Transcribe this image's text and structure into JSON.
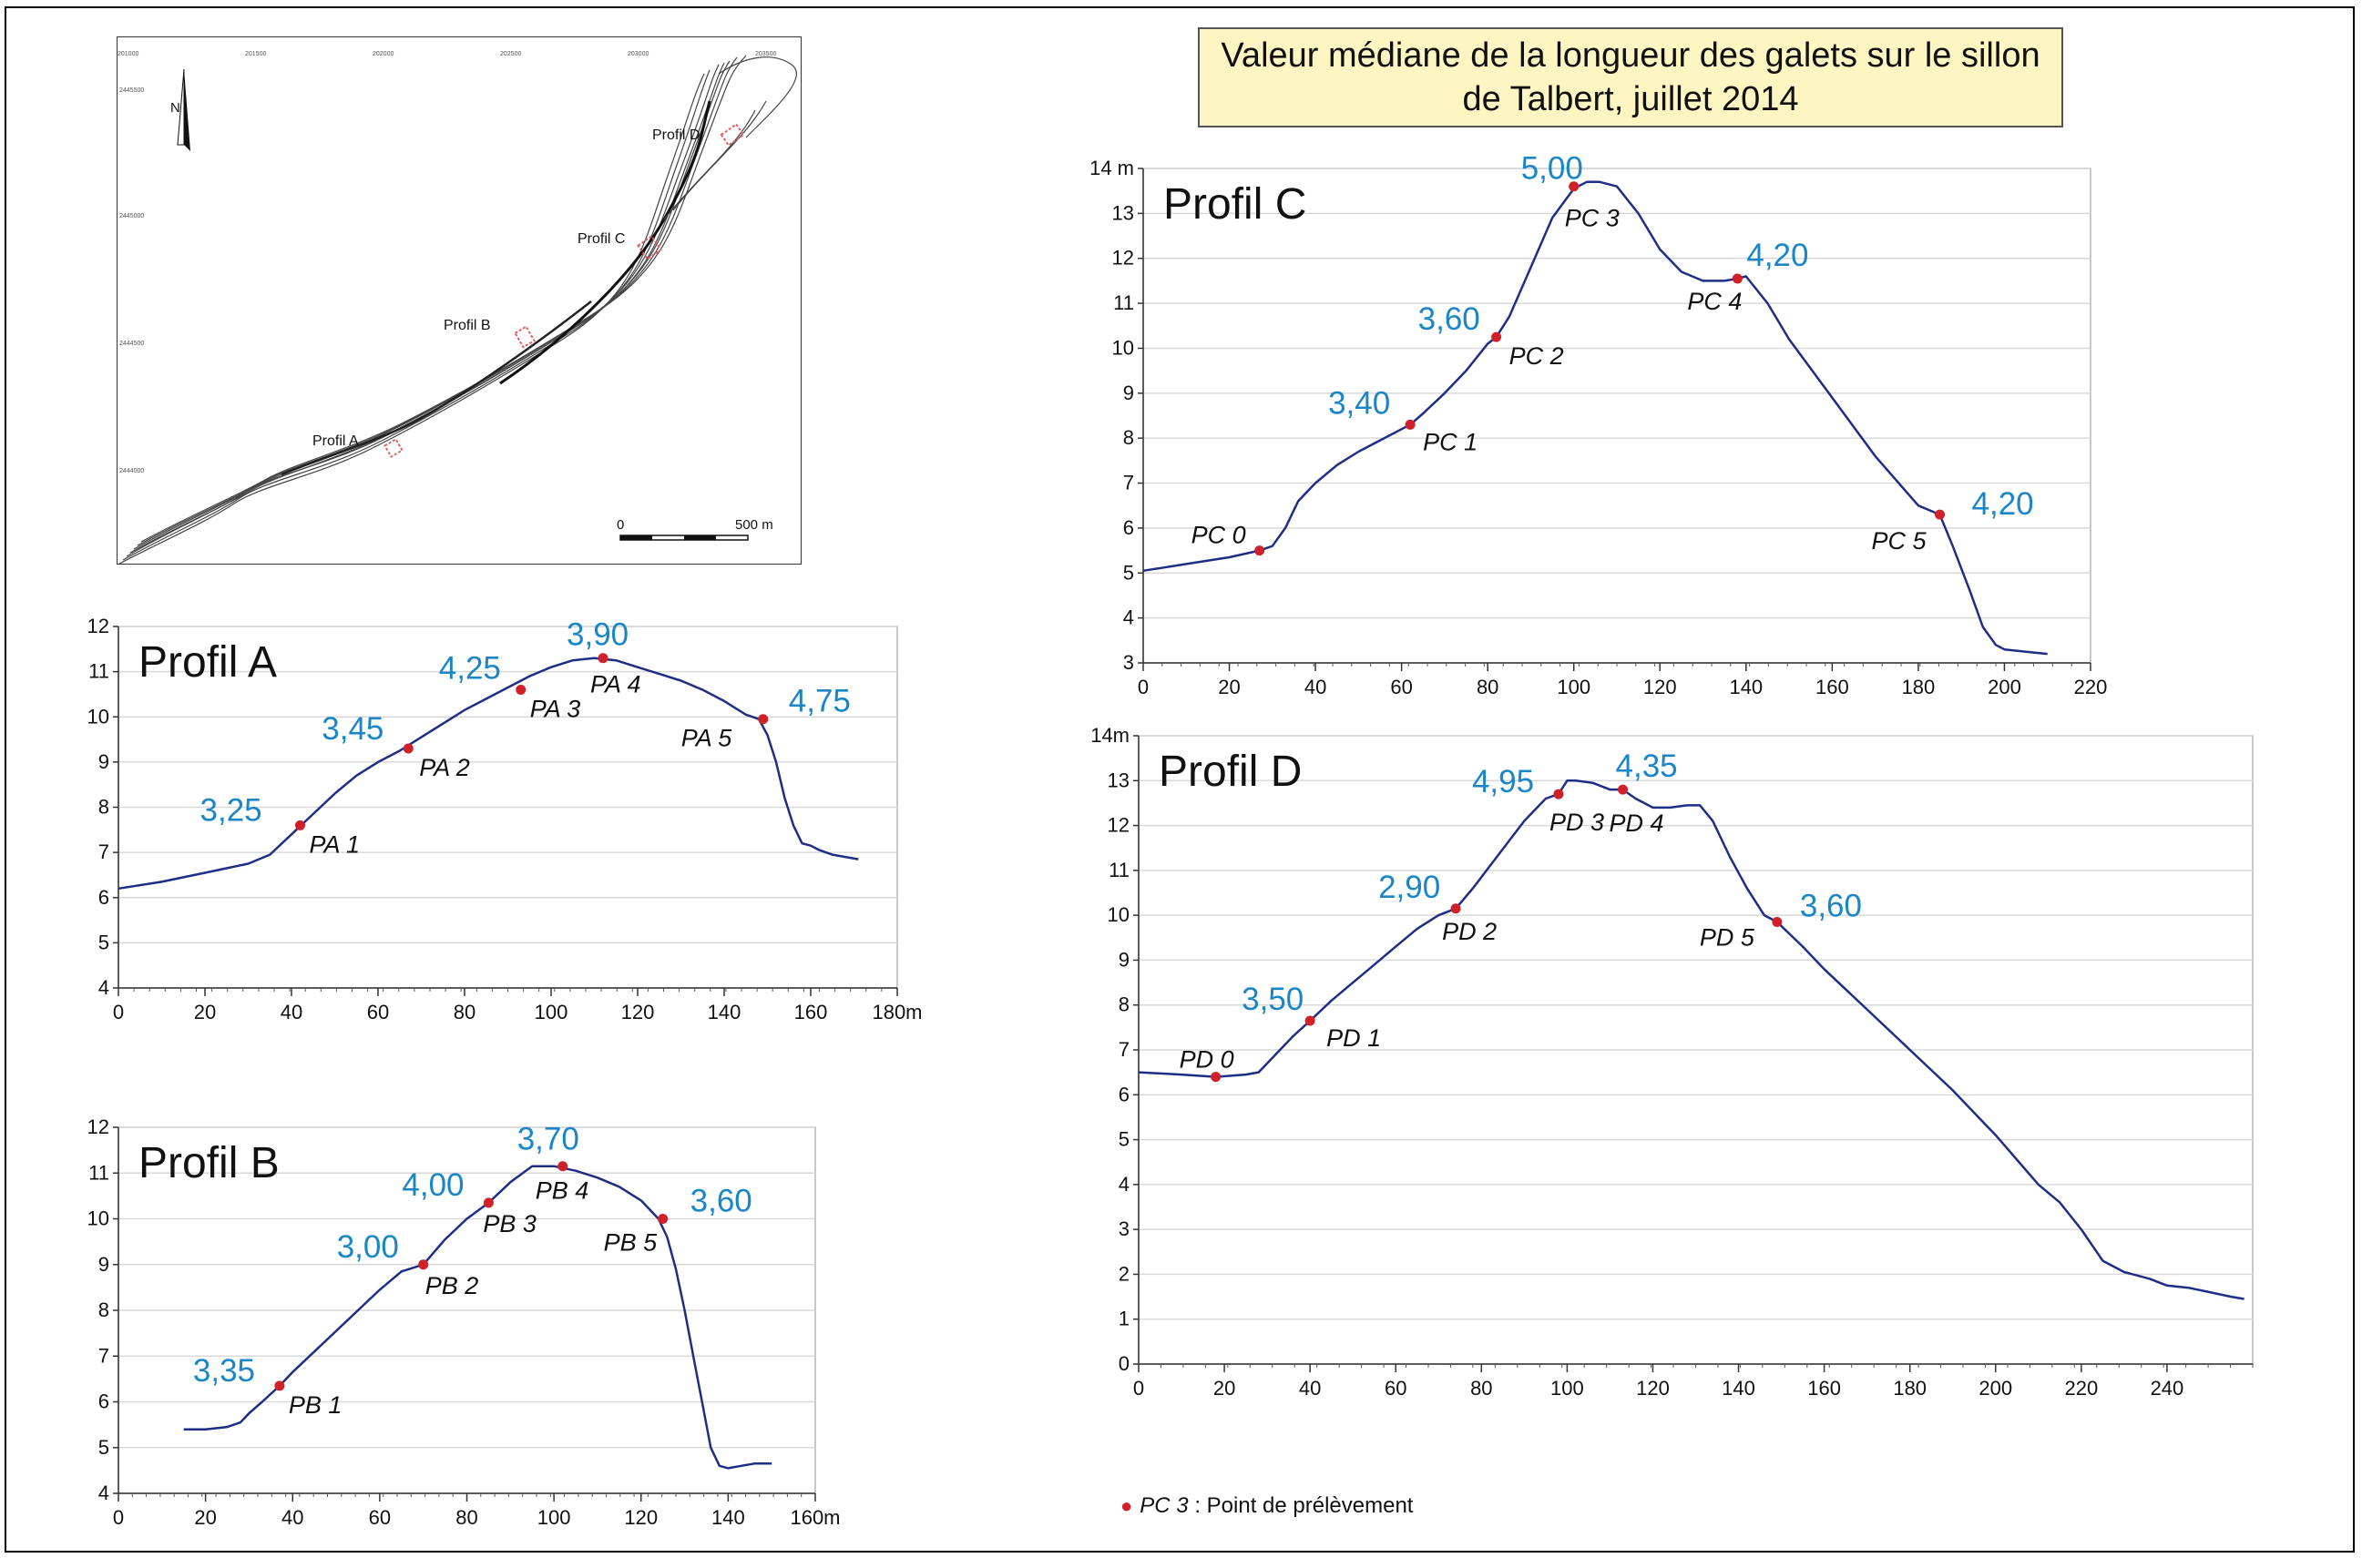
{
  "title": "Valeur médiane de la longueur des galets sur le sillon de Talbert, juillet 2014",
  "legend": {
    "code": "PC 3",
    "text": " : Point de prélèvement"
  },
  "map": {
    "profile_labels": [
      "Profil A",
      "Profil B",
      "Profil C",
      "Profil D"
    ],
    "north": "N",
    "scale_zero": "0",
    "scale_end": "500 m",
    "x_ticks": [
      "201000",
      "201500",
      "202000",
      "202500",
      "203000",
      "203500"
    ],
    "y_ticks": [
      "2445500",
      "2445000",
      "2444500",
      "2444000"
    ]
  },
  "colors": {
    "line": "#1f2e85",
    "point": "#d0202a",
    "value": "#1b86c7",
    "grid": "#d9d9d9",
    "title_bg": "#fdf6c3"
  },
  "chart_data": [
    {
      "id": "A",
      "type": "line",
      "title": "Profil A",
      "xlim": [
        0,
        180
      ],
      "ylim": [
        4,
        12
      ],
      "x_ticks": [
        0,
        20,
        40,
        60,
        80,
        100,
        120,
        140,
        160,
        180
      ],
      "x_tick_labels": [
        "0",
        "20",
        "40",
        "60",
        "80",
        "100",
        "120",
        "140",
        "160",
        "180m"
      ],
      "y_ticks": [
        4,
        5,
        6,
        7,
        8,
        9,
        10,
        11,
        12
      ],
      "y_tick_labels": [
        "4",
        "5",
        "6",
        "7",
        "8",
        "9",
        "10",
        "11",
        "12"
      ],
      "series": [
        {
          "x": [
            0,
            10,
            20,
            30,
            35,
            40,
            45,
            50,
            55,
            60,
            65,
            70,
            75,
            80,
            85,
            90,
            95,
            100,
            105,
            110,
            115,
            120,
            125,
            130,
            135,
            140,
            145,
            148,
            150,
            152,
            154,
            156,
            158,
            160,
            162,
            165,
            168,
            171
          ],
          "y": [
            6.2,
            6.35,
            6.55,
            6.75,
            6.95,
            7.4,
            7.85,
            8.3,
            8.7,
            9.0,
            9.25,
            9.55,
            9.85,
            10.15,
            10.4,
            10.65,
            10.9,
            11.1,
            11.25,
            11.3,
            11.25,
            11.1,
            10.95,
            10.8,
            10.6,
            10.35,
            10.05,
            9.95,
            9.6,
            9.0,
            8.2,
            7.6,
            7.2,
            7.15,
            7.05,
            6.95,
            6.9,
            6.85
          ]
        }
      ],
      "points": [
        {
          "x": 42,
          "y": 7.6,
          "label": "PA 1",
          "value": "3,25"
        },
        {
          "x": 67,
          "y": 9.3,
          "label": "PA 2",
          "value": "3,45"
        },
        {
          "x": 93,
          "y": 10.6,
          "label": "PA 3",
          "value": "4,25"
        },
        {
          "x": 112,
          "y": 11.3,
          "label": "PA 4",
          "value": "3,90"
        },
        {
          "x": 149,
          "y": 9.95,
          "label": "PA 5",
          "value": "4,75"
        }
      ]
    },
    {
      "id": "B",
      "type": "line",
      "title": "Profil B",
      "xlim": [
        0,
        160
      ],
      "ylim": [
        4,
        12
      ],
      "x_ticks": [
        0,
        20,
        40,
        60,
        80,
        100,
        120,
        140,
        160
      ],
      "x_tick_labels": [
        "0",
        "20",
        "40",
        "60",
        "80",
        "100",
        "120",
        "140",
        "160m"
      ],
      "y_ticks": [
        4,
        5,
        6,
        7,
        8,
        9,
        10,
        11,
        12
      ],
      "y_tick_labels": [
        "4",
        "5",
        "6",
        "7",
        "8",
        "9",
        "10",
        "11",
        "12"
      ],
      "series": [
        {
          "x": [
            15,
            20,
            25,
            28,
            30,
            33,
            37,
            40,
            45,
            50,
            55,
            60,
            65,
            70,
            75,
            80,
            85,
            90,
            95,
            100,
            105,
            110,
            115,
            120,
            124,
            126,
            128,
            130,
            132,
            134,
            136,
            138,
            140,
            143,
            146,
            150
          ],
          "y": [
            5.4,
            5.4,
            5.45,
            5.55,
            5.75,
            6.0,
            6.35,
            6.65,
            7.1,
            7.55,
            8.0,
            8.45,
            8.85,
            9.0,
            9.55,
            10.0,
            10.35,
            10.8,
            11.15,
            11.15,
            11.05,
            10.9,
            10.7,
            10.4,
            10.0,
            9.6,
            8.9,
            8.0,
            7.0,
            6.0,
            5.0,
            4.6,
            4.55,
            4.6,
            4.65,
            4.65
          ]
        }
      ],
      "points": [
        {
          "x": 37,
          "y": 6.35,
          "label": "PB 1",
          "value": "3,35"
        },
        {
          "x": 70,
          "y": 9.0,
          "label": "PB 2",
          "value": "3,00"
        },
        {
          "x": 85,
          "y": 10.35,
          "label": "PB 3",
          "value": "4,00"
        },
        {
          "x": 102,
          "y": 11.15,
          "label": "PB 4",
          "value": "3,70"
        },
        {
          "x": 125,
          "y": 10.0,
          "label": "PB 5",
          "value": "3,60"
        }
      ]
    },
    {
      "id": "C",
      "type": "line",
      "title": "Profil C",
      "xlim": [
        0,
        220
      ],
      "ylim": [
        3,
        14
      ],
      "x_ticks": [
        0,
        20,
        40,
        60,
        80,
        100,
        120,
        140,
        160,
        180,
        200,
        220
      ],
      "x_tick_labels": [
        "0",
        "20",
        "40",
        "60",
        "80",
        "100",
        "120",
        "140",
        "160",
        "180",
        "200",
        "220"
      ],
      "y_ticks": [
        3,
        4,
        5,
        6,
        7,
        8,
        9,
        10,
        11,
        12,
        13,
        14
      ],
      "y_tick_labels": [
        "3",
        "4",
        "5",
        "6",
        "7",
        "8",
        "9",
        "10",
        "11",
        "12",
        "13",
        "14 m"
      ],
      "series": [
        {
          "x": [
            0,
            10,
            20,
            27,
            30,
            33,
            36,
            40,
            45,
            50,
            55,
            60,
            62,
            65,
            70,
            75,
            80,
            82,
            85,
            90,
            95,
            100,
            103,
            106,
            110,
            115,
            120,
            125,
            130,
            135,
            138,
            140,
            145,
            150,
            160,
            170,
            180,
            185,
            188,
            192,
            195,
            198,
            200,
            205,
            210
          ],
          "y": [
            5.05,
            5.2,
            5.35,
            5.5,
            5.6,
            6.0,
            6.6,
            7.0,
            7.4,
            7.7,
            7.95,
            8.2,
            8.3,
            8.55,
            9.0,
            9.5,
            10.1,
            10.25,
            10.7,
            11.8,
            12.9,
            13.55,
            13.7,
            13.7,
            13.6,
            13.0,
            12.2,
            11.7,
            11.5,
            11.5,
            11.55,
            11.6,
            11.0,
            10.2,
            8.9,
            7.6,
            6.5,
            6.3,
            5.6,
            4.6,
            3.8,
            3.4,
            3.3,
            3.25,
            3.2
          ]
        }
      ],
      "points": [
        {
          "x": 27,
          "y": 5.5,
          "label": "PC 0",
          "value": ""
        },
        {
          "x": 62,
          "y": 8.3,
          "label": "PC 1",
          "value": "3,40"
        },
        {
          "x": 82,
          "y": 10.25,
          "label": "PC 2",
          "value": "3,60"
        },
        {
          "x": 100,
          "y": 13.6,
          "label": "PC 3",
          "value": "5,00"
        },
        {
          "x": 138,
          "y": 11.55,
          "label": "PC 4",
          "value": "4,20"
        },
        {
          "x": 185,
          "y": 6.3,
          "label": "PC 5",
          "value": "4,20"
        }
      ]
    },
    {
      "id": "D",
      "type": "line",
      "title": "Profil D",
      "xlim": [
        0,
        260
      ],
      "ylim": [
        0,
        14
      ],
      "x_ticks": [
        0,
        20,
        40,
        60,
        80,
        100,
        120,
        140,
        160,
        180,
        200,
        220,
        240
      ],
      "x_tick_labels": [
        "0",
        "20",
        "40",
        "60",
        "80",
        "100",
        "120",
        "140",
        "160",
        "180",
        "200",
        "220",
        "240"
      ],
      "y_ticks": [
        0,
        1,
        2,
        3,
        4,
        5,
        6,
        7,
        8,
        9,
        10,
        11,
        12,
        13,
        14
      ],
      "y_tick_labels": [
        "0",
        "1",
        "2",
        "3",
        "4",
        "5",
        "6",
        "7",
        "8",
        "9",
        "10",
        "11",
        "12",
        "13",
        "14m"
      ],
      "series": [
        {
          "x": [
            0,
            10,
            18,
            25,
            28,
            32,
            36,
            40,
            45,
            50,
            55,
            60,
            65,
            70,
            74,
            78,
            82,
            86,
            90,
            95,
            98,
            100,
            102,
            106,
            110,
            113,
            116,
            120,
            124,
            128,
            131,
            134,
            138,
            142,
            146,
            149,
            155,
            160,
            170,
            180,
            190,
            200,
            210,
            215,
            220,
            225,
            230,
            232,
            236,
            240,
            245,
            250,
            255,
            258
          ],
          "y": [
            6.5,
            6.45,
            6.4,
            6.45,
            6.5,
            6.9,
            7.3,
            7.65,
            8.1,
            8.5,
            8.9,
            9.3,
            9.7,
            10.0,
            10.15,
            10.6,
            11.1,
            11.6,
            12.1,
            12.6,
            12.7,
            13.0,
            13.0,
            12.95,
            12.8,
            12.8,
            12.6,
            12.4,
            12.4,
            12.45,
            12.45,
            12.1,
            11.3,
            10.6,
            10.0,
            9.85,
            9.3,
            8.8,
            7.9,
            7.0,
            6.1,
            5.1,
            4.0,
            3.6,
            3.0,
            2.3,
            2.05,
            2.0,
            1.9,
            1.75,
            1.7,
            1.6,
            1.5,
            1.45
          ]
        }
      ],
      "points": [
        {
          "x": 18,
          "y": 6.4,
          "label": "PD 0",
          "value": ""
        },
        {
          "x": 40,
          "y": 7.65,
          "label": "PD 1",
          "value": "3,50"
        },
        {
          "x": 74,
          "y": 10.15,
          "label": "PD 2",
          "value": "2,90"
        },
        {
          "x": 98,
          "y": 12.7,
          "label": "PD 3",
          "value": "4,95"
        },
        {
          "x": 113,
          "y": 12.8,
          "label": "PD 4",
          "value": "4,35"
        },
        {
          "x": 149,
          "y": 9.85,
          "label": "PD 5",
          "value": "3,60"
        }
      ]
    }
  ]
}
